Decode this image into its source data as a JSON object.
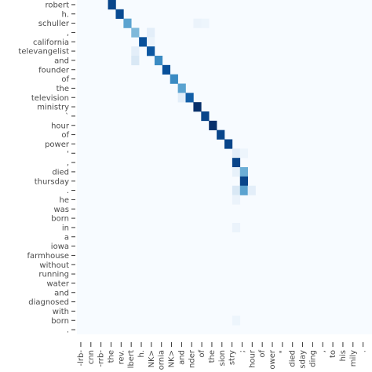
{
  "chart_data": {
    "type": "heatmap",
    "title": "",
    "xlabel": "",
    "ylabel": "",
    "y_labels": [
      "robert",
      "h.",
      "schuller",
      ",",
      "california",
      "televangelist",
      "and",
      "founder",
      "of",
      "the",
      "television",
      "ministry",
      "`",
      "hour",
      "of",
      "power",
      "'",
      ",",
      "died",
      "thursday",
      ".",
      "he",
      "was",
      "born",
      "in",
      "a",
      "iowa",
      "farmhouse",
      "without",
      "running",
      "water",
      "and",
      "diagnosed",
      "with",
      "born",
      "."
    ],
    "x_labels": [
      "-lrb-",
      "cnn",
      "-rrb-",
      "the",
      "rev.",
      "lbert",
      "h.",
      "NK>",
      "ornia",
      "NK>",
      "and",
      "nder",
      "of",
      "the",
      "sion",
      "stry",
      ";",
      "hour",
      "of",
      "ower",
      "\"",
      "died",
      "sday",
      "ding",
      ",",
      "to",
      "his",
      "mily",
      "."
    ],
    "colorscale": [
      "#f7fbff",
      "#deebf7",
      "#c6dbef",
      "#9ecae1",
      "#6baed6",
      "#4292c6",
      "#2171b5",
      "#08519c",
      "#08306b"
    ],
    "cells": [
      [
        0,
        4,
        0.92
      ],
      [
        1,
        5,
        0.9
      ],
      [
        2,
        6,
        0.55
      ],
      [
        2,
        15,
        0.06
      ],
      [
        2,
        16,
        0.05
      ],
      [
        3,
        7,
        0.45
      ],
      [
        3,
        9,
        0.1
      ],
      [
        4,
        8,
        0.88
      ],
      [
        4,
        9,
        0.06
      ],
      [
        5,
        7,
        0.1
      ],
      [
        5,
        9,
        0.85
      ],
      [
        6,
        7,
        0.15
      ],
      [
        6,
        10,
        0.65
      ],
      [
        7,
        11,
        0.88
      ],
      [
        8,
        12,
        0.65
      ],
      [
        9,
        13,
        0.55
      ],
      [
        10,
        13,
        0.1
      ],
      [
        10,
        14,
        0.82
      ],
      [
        11,
        15,
        1.0
      ],
      [
        12,
        16,
        0.92
      ],
      [
        13,
        17,
        1.0
      ],
      [
        14,
        18,
        0.92
      ],
      [
        15,
        19,
        0.92
      ],
      [
        16,
        20,
        0.1
      ],
      [
        16,
        21,
        0.05
      ],
      [
        17,
        20,
        0.92
      ],
      [
        18,
        20,
        0.08
      ],
      [
        18,
        21,
        0.5
      ],
      [
        19,
        21,
        0.92
      ],
      [
        20,
        20,
        0.15
      ],
      [
        20,
        21,
        0.55
      ],
      [
        20,
        22,
        0.1
      ],
      [
        21,
        20,
        0.06
      ],
      [
        24,
        20,
        0.06
      ],
      [
        34,
        20,
        0.05
      ]
    ]
  }
}
